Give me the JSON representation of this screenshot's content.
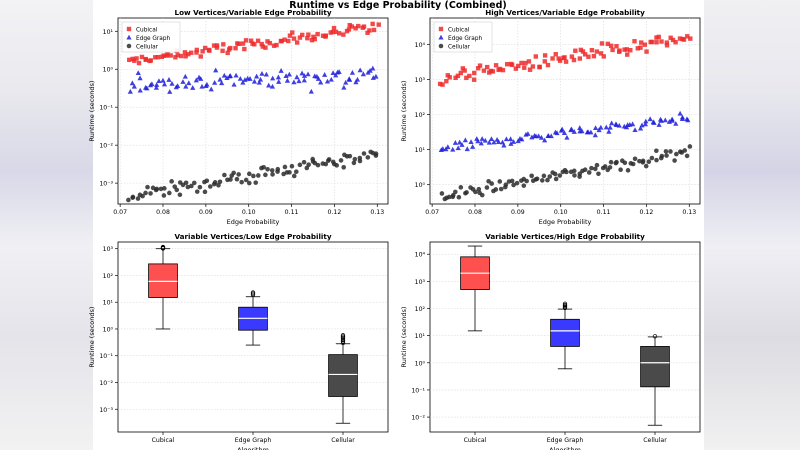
{
  "figure_title": "Runtime vs Edge Probability (Combined)",
  "colors": {
    "cubical": "#ee2a2a",
    "edge_graph": "#1f1fdd",
    "cellular": "#2b2b2b"
  },
  "chart_data": [
    {
      "id": "tl",
      "type": "scatter",
      "title": "Low Vertices/Variable Edge Probability",
      "xlabel": "Edge Probability",
      "ylabel": "Runtime (seconds)",
      "yscale": "log",
      "xlim": [
        0.0695,
        0.1325
      ],
      "ylim_log10": [
        -3.55,
        1.35
      ],
      "xticks": [
        "0.07",
        "0.08",
        "0.09",
        "0.10",
        "0.11",
        "0.12",
        "0.13"
      ],
      "yticks": [
        "10⁻³",
        "10⁻²",
        "10⁻¹",
        "10⁰",
        "10¹"
      ],
      "legend": [
        "Cubical",
        "Edge Graph",
        "Cellular"
      ],
      "series": [
        {
          "name": "Cubical",
          "marker": "square",
          "x_start": 0.072,
          "x_end": 0.13,
          "n": 95,
          "log10_start": 0.2,
          "log10_end": 1.1,
          "spread": 0.3
        },
        {
          "name": "Edge Graph",
          "marker": "triangle",
          "x_start": 0.072,
          "x_end": 0.13,
          "n": 95,
          "log10_start": -0.38,
          "log10_end": -0.15,
          "spread": 0.5
        },
        {
          "name": "Cellular",
          "marker": "circle",
          "x_start": 0.072,
          "x_end": 0.13,
          "n": 95,
          "log10_start": -3.35,
          "log10_end": -2.25,
          "spread": 0.45
        }
      ]
    },
    {
      "id": "tr",
      "type": "scatter",
      "title": "High Vertices/Variable Edge Probability",
      "xlabel": "Edge Probability",
      "ylabel": "Runtime (seconds)",
      "yscale": "log",
      "xlim": [
        0.0695,
        0.1325
      ],
      "ylim_log10": [
        -0.55,
        4.75
      ],
      "xticks": [
        "0.07",
        "0.08",
        "0.09",
        "0.10",
        "0.11",
        "0.12",
        "0.13"
      ],
      "yticks": [
        "10⁰",
        "10¹",
        "10²",
        "10³",
        "10⁴"
      ],
      "legend": [
        "Cubical",
        "Edge Graph",
        "Cellular"
      ],
      "series": [
        {
          "name": "Cubical",
          "marker": "square",
          "x_start": 0.072,
          "x_end": 0.13,
          "n": 95,
          "log10_start": 3.05,
          "log10_end": 4.15,
          "spread": 0.45
        },
        {
          "name": "Edge Graph",
          "marker": "triangle",
          "x_start": 0.072,
          "x_end": 0.13,
          "n": 95,
          "log10_start": 1.05,
          "log10_end": 1.9,
          "spread": 0.3
        },
        {
          "name": "Cellular",
          "marker": "circle",
          "x_start": 0.072,
          "x_end": 0.13,
          "n": 95,
          "log10_start": -0.35,
          "log10_end": 0.95,
          "spread": 0.35
        }
      ]
    },
    {
      "id": "bl",
      "type": "box",
      "title": "Variable Vertices/Low Edge Probability",
      "xlabel": "Algorithm",
      "ylabel": "Runtime (seconds)",
      "yscale": "log",
      "ylim_log10": [
        -3.85,
        3.25
      ],
      "yticks": [
        "10⁻³",
        "10⁻²",
        "10⁻¹",
        "10⁰",
        "10¹",
        "10²",
        "10³"
      ],
      "categories": [
        "Cubical",
        "Edge Graph",
        "Cellular"
      ],
      "boxes": [
        {
          "name": "Cubical",
          "whislo": 1.0,
          "q1": 15,
          "med": 60,
          "q3": 270,
          "whishi": 1000,
          "fliers": [
            1020,
            1060,
            1100,
            1150
          ]
        },
        {
          "name": "Edge Graph",
          "whislo": 0.25,
          "q1": 0.9,
          "med": 2.5,
          "q3": 6.5,
          "whishi": 16,
          "fliers": [
            19,
            21,
            23
          ]
        },
        {
          "name": "Cellular",
          "whislo": 0.0003,
          "q1": 0.003,
          "med": 0.02,
          "q3": 0.11,
          "whishi": 0.28,
          "fliers": [
            0.3,
            0.34,
            0.38,
            0.42,
            0.47,
            0.52,
            0.58
          ]
        }
      ]
    },
    {
      "id": "br",
      "type": "box",
      "title": "Variable Vertices/High Edge Probability",
      "xlabel": "Algorithm",
      "ylabel": "Runtime (seconds)",
      "yscale": "log",
      "ylim_log10": [
        -2.55,
        4.45
      ],
      "yticks": [
        "10⁻²",
        "10⁻¹",
        "10⁰",
        "10¹",
        "10²",
        "10³",
        "10⁴"
      ],
      "categories": [
        "Cubical",
        "Edge Graph",
        "Cellular"
      ],
      "boxes": [
        {
          "name": "Cubical",
          "whislo": 15,
          "q1": 500,
          "med": 2000,
          "q3": 8000,
          "whishi": 20000,
          "fliers": []
        },
        {
          "name": "Edge Graph",
          "whislo": 0.6,
          "q1": 4,
          "med": 15,
          "q3": 40,
          "whishi": 95,
          "fliers": [
            105,
            115,
            125,
            135,
            150
          ]
        },
        {
          "name": "Cellular",
          "whislo": 0.005,
          "q1": 0.13,
          "med": 1.0,
          "q3": 4.0,
          "whishi": 9,
          "fliers": [
            9.5
          ]
        }
      ]
    }
  ]
}
